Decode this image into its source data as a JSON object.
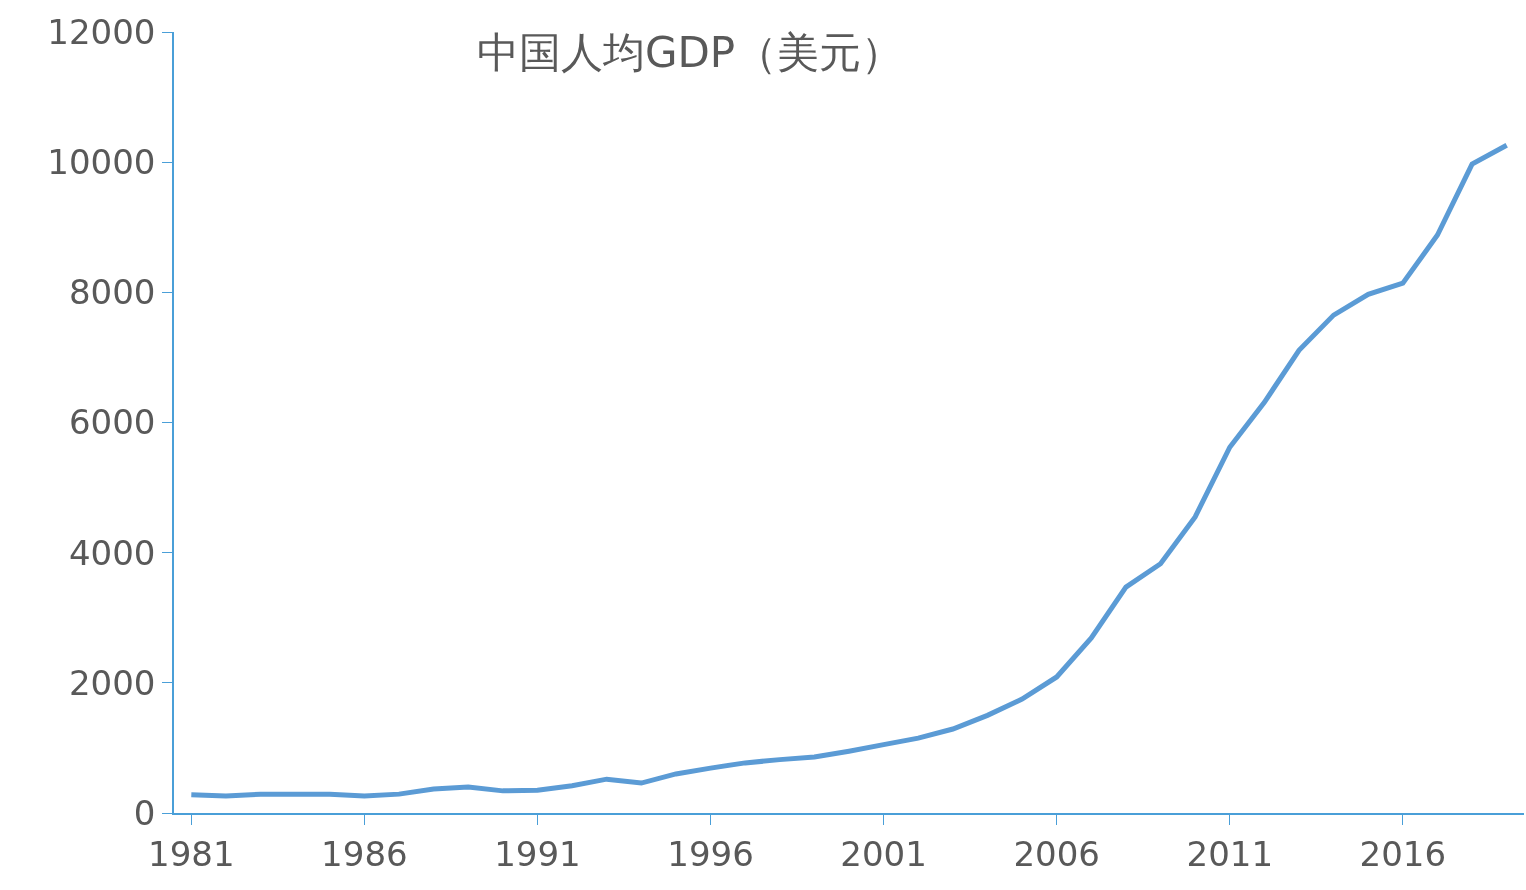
{
  "chart_data": {
    "type": "line",
    "title": "中国人均GDP（美元）",
    "x": [
      1981,
      1982,
      1983,
      1984,
      1985,
      1986,
      1987,
      1988,
      1989,
      1990,
      1991,
      1992,
      1993,
      1994,
      1995,
      1996,
      1997,
      1998,
      1999,
      2000,
      2001,
      2002,
      2003,
      2004,
      2005,
      2006,
      2007,
      2008,
      2009,
      2010,
      2011,
      2012,
      2013,
      2014,
      2015,
      2016,
      2017,
      2018,
      2019
    ],
    "series": [
      {
        "color": "#5b9bd5",
        "values": [
          280,
          260,
          290,
          290,
          290,
          260,
          290,
          370,
          400,
          340,
          350,
          420,
          520,
          460,
          600,
          690,
          770,
          820,
          860,
          950,
          1050,
          1150,
          1290,
          1500,
          1750,
          2090,
          2690,
          3470,
          3830,
          4550,
          5620,
          6310,
          7110,
          7650,
          7970,
          8140,
          8880,
          9970,
          10260
        ]
      }
    ],
    "xlim": [
      1980.5,
      2019.5
    ],
    "xticks": [
      1981,
      1986,
      1991,
      1996,
      2001,
      2006,
      2011,
      2016
    ],
    "ylim": [
      0,
      12000
    ],
    "yticks": [
      0,
      2000,
      4000,
      6000,
      8000,
      10000,
      12000
    ],
    "marker": "none",
    "line_style": "solid"
  }
}
